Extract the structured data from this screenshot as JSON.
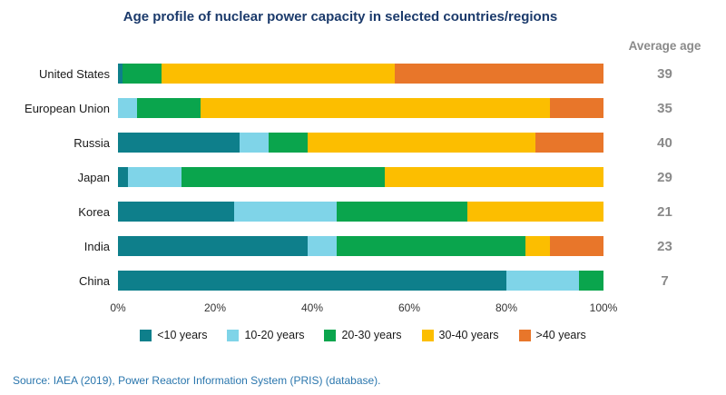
{
  "title": "Age profile of nuclear power capacity in selected countries/regions",
  "average_age_header": "Average age",
  "source": "Source: IAEA (2019), Power Reactor Information System (PRIS) (database).",
  "colors": {
    "title_text": "#1b3a6b",
    "average_age_text": "#8a8a8a",
    "source_text": "#2a76ad"
  },
  "chart_data": {
    "type": "bar",
    "stacked": true,
    "orientation": "horizontal",
    "title": "Age profile of nuclear power capacity in selected countries/regions",
    "categories": [
      "United States",
      "European Union",
      "Russia",
      "Japan",
      "Korea",
      "India",
      "China"
    ],
    "average_age": [
      39,
      35,
      40,
      29,
      21,
      23,
      7
    ],
    "series": [
      {
        "name": "<10 years",
        "color": "#0e7f8b",
        "values": [
          1,
          0,
          25,
          2,
          24,
          39,
          80
        ]
      },
      {
        "name": "10-20 years",
        "color": "#7fd4e8",
        "values": [
          0,
          4,
          6,
          11,
          21,
          6,
          15
        ]
      },
      {
        "name": "20-30 years",
        "color": "#0aa54d",
        "values": [
          8,
          13,
          8,
          42,
          27,
          39,
          5
        ]
      },
      {
        "name": "30-40 years",
        "color": "#fcbe00",
        "values": [
          48,
          72,
          47,
          45,
          28,
          5,
          0
        ]
      },
      {
        "name": ">40 years",
        "color": "#e8762a",
        "values": [
          43,
          11,
          14,
          0,
          0,
          11,
          0
        ]
      }
    ],
    "xlim": [
      0,
      100
    ],
    "x_tick_positions": [
      0,
      20,
      40,
      60,
      80,
      100
    ],
    "x_tick_labels": [
      "0%",
      "20%",
      "40%",
      "60%",
      "80%",
      "100%"
    ],
    "legend_position": "bottom",
    "grid": false,
    "right_column_label": "Average age"
  }
}
